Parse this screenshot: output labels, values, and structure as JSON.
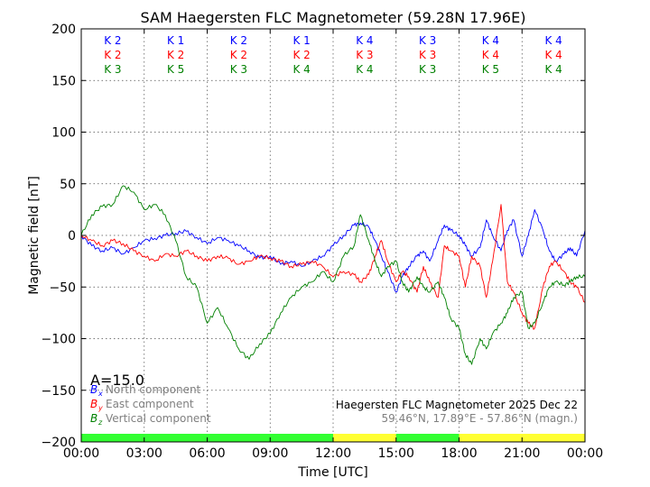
{
  "chart_data": {
    "type": "line",
    "title": "SAM Haegersten FLC Magnetometer (59.28N 17.96E)",
    "xlabel": "Time [UTC]",
    "ylabel": "Magnetic field [nT]",
    "xlim": [
      0,
      24
    ],
    "ylim": [
      -200,
      200
    ],
    "xticks": [
      0,
      3,
      6,
      9,
      12,
      15,
      18,
      21,
      24
    ],
    "xtick_labels": [
      "00:00",
      "03:00",
      "06:00",
      "09:00",
      "12:00",
      "15:00",
      "18:00",
      "21:00",
      "00:00"
    ],
    "yticks": [
      -200,
      -150,
      -100,
      -50,
      0,
      50,
      100,
      150,
      200
    ],
    "grid": true,
    "k_index_rows": [
      {
        "color": "#0000ff",
        "labels": [
          "K 2",
          "K 1",
          "K 2",
          "K 1",
          "K 4",
          "K 3",
          "K 4",
          "K 4"
        ]
      },
      {
        "color": "#ff0000",
        "labels": [
          "K 2",
          "K 2",
          "K 2",
          "K 2",
          "K 3",
          "K 3",
          "K 4",
          "K 4"
        ]
      },
      {
        "color": "#008000",
        "labels": [
          "K 3",
          "K 5",
          "K 3",
          "K 4",
          "K 4",
          "K 3",
          "K 5",
          "K 4"
        ]
      }
    ],
    "activity_bar": [
      {
        "from": 0,
        "to": 12,
        "color": "#33ff33"
      },
      {
        "from": 12,
        "to": 15,
        "color": "#ffff33"
      },
      {
        "from": 15,
        "to": 18,
        "color": "#33ff33"
      },
      {
        "from": 18,
        "to": 24,
        "color": "#ffff33"
      }
    ],
    "amplitude_label": "A=15.0",
    "legend": [
      {
        "symbol": "B",
        "sub": "x",
        "text": "North component",
        "color": "#0000ff"
      },
      {
        "symbol": "B",
        "sub": "y",
        "text": "East component",
        "color": "#ff0000"
      },
      {
        "symbol": "B",
        "sub": "z",
        "text": "Vertical component",
        "color": "#008000"
      }
    ],
    "info_line1": "Haegersten FLC Magnetometer 2025 Dec 22",
    "info_line2": "59.46°N, 17.89°E - 57.86°N (magn.)",
    "series": [
      {
        "name": "Bx North component",
        "color": "#0000ff",
        "x": [
          0,
          0.5,
          1,
          1.5,
          2,
          2.5,
          3,
          3.5,
          4,
          4.5,
          5,
          5.5,
          6,
          6.5,
          7,
          7.5,
          8,
          8.5,
          9,
          9.5,
          10,
          10.5,
          11,
          11.5,
          12,
          12.5,
          13,
          13.3,
          13.7,
          14,
          14.3,
          14.6,
          15,
          15.3,
          15.6,
          16,
          16.3,
          16.6,
          17,
          17.3,
          17.6,
          18,
          18.3,
          18.6,
          19,
          19.3,
          19.6,
          20,
          20.3,
          20.6,
          21,
          21.3,
          21.6,
          22,
          22.3,
          22.6,
          23,
          23.3,
          23.6,
          24
        ],
        "y": [
          0,
          -10,
          -15,
          -12,
          -18,
          -12,
          -5,
          -3,
          0,
          2,
          4,
          -2,
          -8,
          -2,
          -5,
          -10,
          -15,
          -22,
          -20,
          -28,
          -25,
          -30,
          -25,
          -20,
          -10,
          0,
          10,
          12,
          8,
          -5,
          -20,
          -35,
          -55,
          -40,
          -30,
          -20,
          -15,
          -25,
          -5,
          10,
          5,
          0,
          -10,
          -20,
          -12,
          15,
          0,
          -15,
          5,
          15,
          -20,
          0,
          25,
          5,
          -15,
          -25,
          -18,
          -12,
          -20,
          5
        ]
      },
      {
        "name": "By East component",
        "color": "#ff0000",
        "x": [
          0,
          0.5,
          1,
          1.5,
          2,
          2.5,
          3,
          3.5,
          4,
          4.5,
          5,
          5.5,
          6,
          6.5,
          7,
          7.5,
          8,
          8.5,
          9,
          9.5,
          10,
          10.5,
          11,
          11.5,
          12,
          12.5,
          13,
          13.3,
          13.7,
          14,
          14.3,
          14.6,
          15,
          15.3,
          15.6,
          16,
          16.3,
          16.6,
          17,
          17.3,
          17.6,
          18,
          18.3,
          18.6,
          19,
          19.3,
          19.6,
          20,
          20.3,
          20.6,
          21,
          21.3,
          21.6,
          22,
          22.3,
          22.6,
          23,
          23.3,
          23.6,
          24
        ],
        "y": [
          0,
          -5,
          -10,
          -5,
          -8,
          -15,
          -20,
          -25,
          -18,
          -20,
          -15,
          -20,
          -25,
          -20,
          -22,
          -28,
          -25,
          -20,
          -22,
          -25,
          -30,
          -28,
          -25,
          -30,
          -40,
          -35,
          -38,
          -45,
          -38,
          -20,
          -5,
          -25,
          -45,
          -35,
          -40,
          -55,
          -30,
          -45,
          -60,
          -10,
          -15,
          -20,
          -50,
          -20,
          -30,
          -60,
          -25,
          30,
          -45,
          -55,
          -75,
          -85,
          -90,
          -50,
          -30,
          -25,
          -35,
          -45,
          -50,
          -65
        ]
      },
      {
        "name": "Bz Vertical component",
        "color": "#008000",
        "x": [
          0,
          0.5,
          1,
          1.5,
          2,
          2.5,
          3,
          3.5,
          4,
          4.5,
          5,
          5.5,
          6,
          6.5,
          7,
          7.5,
          8,
          8.5,
          9,
          9.5,
          10,
          10.5,
          11,
          11.5,
          12,
          12.5,
          13,
          13.3,
          13.7,
          14,
          14.3,
          14.6,
          15,
          15.3,
          15.6,
          16,
          16.3,
          16.6,
          17,
          17.3,
          17.6,
          18,
          18.3,
          18.6,
          19,
          19.3,
          19.6,
          20,
          20.3,
          20.6,
          21,
          21.3,
          21.6,
          22,
          22.3,
          22.6,
          23,
          23.3,
          23.6,
          24
        ],
        "y": [
          0,
          20,
          28,
          30,
          48,
          42,
          25,
          30,
          20,
          -5,
          -40,
          -50,
          -85,
          -70,
          -90,
          -110,
          -120,
          -105,
          -95,
          -75,
          -60,
          -50,
          -45,
          -35,
          -45,
          -20,
          -10,
          20,
          -5,
          -25,
          -40,
          -30,
          -25,
          -45,
          -55,
          -40,
          -50,
          -55,
          -45,
          -60,
          -80,
          -90,
          -115,
          -125,
          -100,
          -110,
          -95,
          -85,
          -75,
          -60,
          -55,
          -90,
          -85,
          -65,
          -50,
          -45,
          -48,
          -45,
          -40,
          -40
        ]
      }
    ]
  }
}
